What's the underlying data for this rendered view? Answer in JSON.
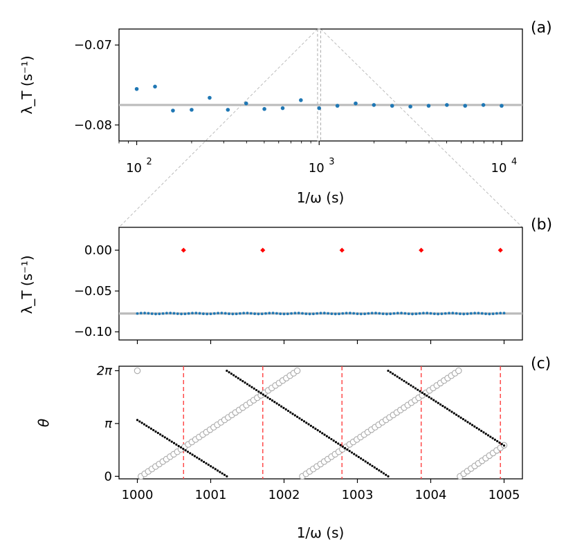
{
  "chart_data": [
    {
      "id": "a",
      "type": "scatter",
      "panel_label": "(a)",
      "xlabel": "1/ω (s)",
      "ylabel": "λ_T (s⁻¹)",
      "xscale": "log",
      "xlim": [
        80,
        13000
      ],
      "ylim": [
        -0.082,
        -0.068
      ],
      "yticks": [
        -0.07,
        -0.08
      ],
      "ytick_labels": [
        "−0.07",
        "−0.08"
      ],
      "xticks": [
        100,
        1000,
        10000
      ],
      "xtick_labels": [
        "10",
        "10",
        "10"
      ],
      "xtick_exponents": [
        "2",
        "3",
        "4"
      ],
      "reference_line": -0.0775,
      "zoom_window": [
        980,
        1020
      ],
      "series": [
        {
          "name": "lambda_T",
          "color": "#1f77b4",
          "x": [
            100,
            126,
            158,
            200,
            251,
            316,
            398,
            501,
            631,
            794,
            1000,
            1259,
            1585,
            1995,
            2512,
            3162,
            3981,
            5012,
            6310,
            7943,
            10000
          ],
          "y": [
            -0.0755,
            -0.0752,
            -0.0782,
            -0.0781,
            -0.0766,
            -0.0781,
            -0.0773,
            -0.078,
            -0.0779,
            -0.0769,
            -0.0779,
            -0.0776,
            -0.0773,
            -0.0775,
            -0.0776,
            -0.0777,
            -0.0776,
            -0.0775,
            -0.0776,
            -0.0775,
            -0.0776
          ]
        }
      ]
    },
    {
      "id": "b",
      "type": "scatter",
      "panel_label": "(b)",
      "xlabel": "",
      "ylabel": "λ_T (s⁻¹)",
      "xlim": [
        999.75,
        1005.25
      ],
      "ylim": [
        -0.11,
        0.028
      ],
      "yticks": [
        0.0,
        -0.05,
        -0.1
      ],
      "ytick_labels": [
        "0.00",
        "−0.05",
        "−0.10"
      ],
      "xticks": [
        1000,
        1001,
        1002,
        1003,
        1004,
        1005
      ],
      "reference_line": -0.0776,
      "series": [
        {
          "name": "lambda_T (dense sweep)",
          "color": "#1f77b4",
          "x_start": 1000,
          "x_end": 1005,
          "count": 101,
          "baseline": -0.0776
        },
        {
          "name": "resonance markers",
          "color": "#ff0000",
          "marker": "diamond",
          "x": [
            1000.63,
            1001.71,
            1002.79,
            1003.87,
            1004.95
          ],
          "y": [
            0,
            0,
            0,
            0,
            0
          ]
        }
      ]
    },
    {
      "id": "c",
      "type": "scatter",
      "panel_label": "(c)",
      "xlabel": "1/ω (s)",
      "ylabel": "θ",
      "xlim": [
        999.75,
        1005.25
      ],
      "ylim": [
        -0.15,
        6.55
      ],
      "yticks": [
        0,
        3.14159,
        6.28319
      ],
      "ytick_labels": [
        "0",
        "π",
        "2π"
      ],
      "xticks": [
        1000,
        1001,
        1002,
        1003,
        1004,
        1005
      ],
      "xtick_labels": [
        "1000",
        "1001",
        "1002",
        "1003",
        "1004",
        "1005"
      ],
      "vlines": [
        1000.63,
        1001.71,
        1002.79,
        1003.87,
        1004.95
      ],
      "vline_color": "#ff4a4a",
      "series": [
        {
          "name": "open circles (increasing phase)",
          "color": "#aaaaaa",
          "marker": "open-circle",
          "segments": [
            {
              "x0": 1000.05,
              "x1": 1002.18,
              "y0": 0.0,
              "y1": 6.28,
              "n": 44
            },
            {
              "x0": 1002.25,
              "x1": 1004.38,
              "y0": 0.0,
              "y1": 6.28,
              "n": 44
            },
            {
              "x0": 1004.4,
              "x1": 1005.0,
              "y0": 0.0,
              "y1": 1.85,
              "n": 13
            }
          ],
          "extra_points": [
            {
              "x": 1000.0,
              "y": 6.28
            }
          ]
        },
        {
          "name": "filled dots (decreasing phase)",
          "color": "#000000",
          "marker": "dot",
          "segments": [
            {
              "x0": 1000.0,
              "x1": 1001.22,
              "y0": 3.35,
              "y1": 0.0,
              "n": 40
            },
            {
              "x0": 1001.22,
              "x1": 1003.42,
              "y0": 6.28,
              "y1": 0.0,
              "n": 72
            },
            {
              "x0": 1003.42,
              "x1": 1005.0,
              "y0": 6.28,
              "y1": 1.83,
              "n": 52
            }
          ]
        }
      ]
    }
  ]
}
